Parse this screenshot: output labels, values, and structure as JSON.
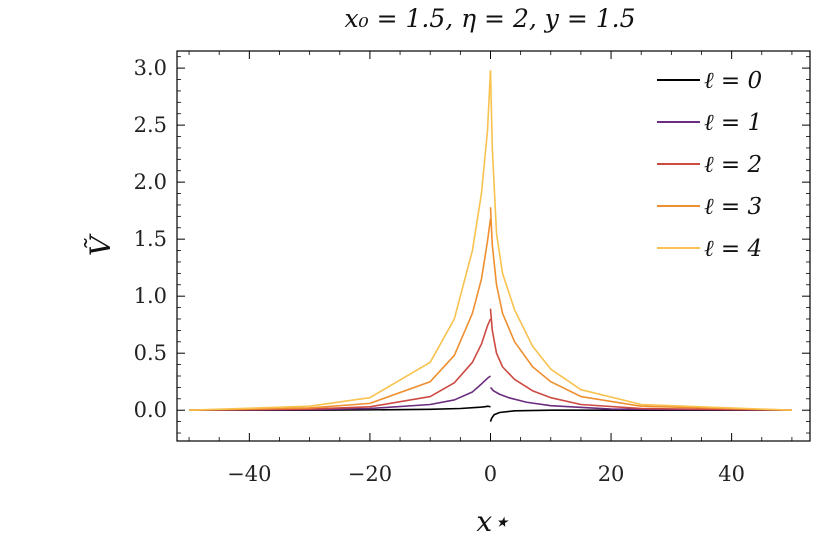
{
  "chart_data": {
    "type": "line",
    "title": "x₀ = 1.5, η = 2, y = 1.5",
    "xlabel": "x⋆",
    "ylabel": "Ṽ",
    "xlim": [
      -52,
      53
    ],
    "ylim": [
      -0.27,
      3.15
    ],
    "x_ticks": [
      -40,
      -20,
      0,
      20,
      40
    ],
    "x_tick_labels": [
      "−40",
      "−20",
      "0",
      "20",
      "40"
    ],
    "y_ticks": [
      0.0,
      0.5,
      1.0,
      1.5,
      2.0,
      2.5,
      3.0
    ],
    "y_tick_labels": [
      "0.0",
      "0.5",
      "1.0",
      "1.5",
      "2.0",
      "2.5",
      "3.0"
    ],
    "grid": false,
    "legend_position": "top-right",
    "series": [
      {
        "name": "ℓ = 0",
        "color": "#000000",
        "left": [
          [
            -50,
            0.0
          ],
          [
            -30,
            0.0
          ],
          [
            -20,
            0.003
          ],
          [
            -10,
            0.008
          ],
          [
            -5,
            0.015
          ],
          [
            -2,
            0.025
          ],
          [
            -1,
            0.03
          ],
          [
            -0.4,
            0.035
          ],
          [
            0,
            0.03
          ]
        ],
        "right": [
          [
            0,
            -0.1
          ],
          [
            0.2,
            -0.07
          ],
          [
            0.6,
            -0.04
          ],
          [
            1.5,
            -0.02
          ],
          [
            4,
            -0.005
          ],
          [
            10,
            0.0
          ],
          [
            50,
            0.0
          ]
        ]
      },
      {
        "name": "ℓ = 1",
        "color": "#6b2d7e",
        "left": [
          [
            -50,
            0.0
          ],
          [
            -30,
            0.005
          ],
          [
            -20,
            0.015
          ],
          [
            -10,
            0.05
          ],
          [
            -6,
            0.09
          ],
          [
            -3,
            0.16
          ],
          [
            -1.5,
            0.23
          ],
          [
            -0.5,
            0.28
          ],
          [
            0,
            0.3
          ]
        ],
        "right": [
          [
            0,
            0.2
          ],
          [
            0.5,
            0.17
          ],
          [
            1.5,
            0.14
          ],
          [
            3,
            0.11
          ],
          [
            6,
            0.07
          ],
          [
            10,
            0.04
          ],
          [
            20,
            0.01
          ],
          [
            50,
            0.0
          ]
        ]
      },
      {
        "name": "ℓ = 2",
        "color": "#cc4a42",
        "left": [
          [
            -50,
            0.0
          ],
          [
            -30,
            0.01
          ],
          [
            -20,
            0.03
          ],
          [
            -10,
            0.12
          ],
          [
            -6,
            0.24
          ],
          [
            -3,
            0.42
          ],
          [
            -1.5,
            0.58
          ],
          [
            -0.5,
            0.74
          ],
          [
            0,
            0.8
          ]
        ],
        "right": [
          [
            0,
            0.89
          ],
          [
            0.3,
            0.7
          ],
          [
            1,
            0.5
          ],
          [
            2,
            0.38
          ],
          [
            4,
            0.27
          ],
          [
            7,
            0.17
          ],
          [
            10,
            0.11
          ],
          [
            15,
            0.05
          ],
          [
            25,
            0.015
          ],
          [
            50,
            0.0
          ]
        ]
      },
      {
        "name": "ℓ = 3",
        "color": "#ef8f2f",
        "left": [
          [
            -50,
            0.0
          ],
          [
            -30,
            0.02
          ],
          [
            -20,
            0.06
          ],
          [
            -10,
            0.25
          ],
          [
            -6,
            0.48
          ],
          [
            -3,
            0.85
          ],
          [
            -1.5,
            1.15
          ],
          [
            -0.5,
            1.48
          ],
          [
            0,
            1.68
          ]
        ],
        "right": [
          [
            0,
            1.78
          ],
          [
            0.3,
            1.45
          ],
          [
            1,
            1.1
          ],
          [
            2,
            0.85
          ],
          [
            4,
            0.6
          ],
          [
            7,
            0.38
          ],
          [
            10,
            0.25
          ],
          [
            15,
            0.12
          ],
          [
            25,
            0.035
          ],
          [
            50,
            0.0
          ]
        ]
      },
      {
        "name": "ℓ = 4",
        "color": "#f8c24e",
        "left": [
          [
            -50,
            0.0
          ],
          [
            -30,
            0.035
          ],
          [
            -20,
            0.11
          ],
          [
            -10,
            0.42
          ],
          [
            -6,
            0.8
          ],
          [
            -3,
            1.4
          ],
          [
            -1.5,
            1.9
          ],
          [
            -0.5,
            2.45
          ],
          [
            0,
            2.98
          ]
        ],
        "right": [
          [
            0,
            2.98
          ],
          [
            0.3,
            2.3
          ],
          [
            1,
            1.55
          ],
          [
            2,
            1.2
          ],
          [
            4,
            0.88
          ],
          [
            7,
            0.56
          ],
          [
            10,
            0.36
          ],
          [
            15,
            0.18
          ],
          [
            25,
            0.05
          ],
          [
            50,
            0.0
          ]
        ]
      }
    ]
  }
}
